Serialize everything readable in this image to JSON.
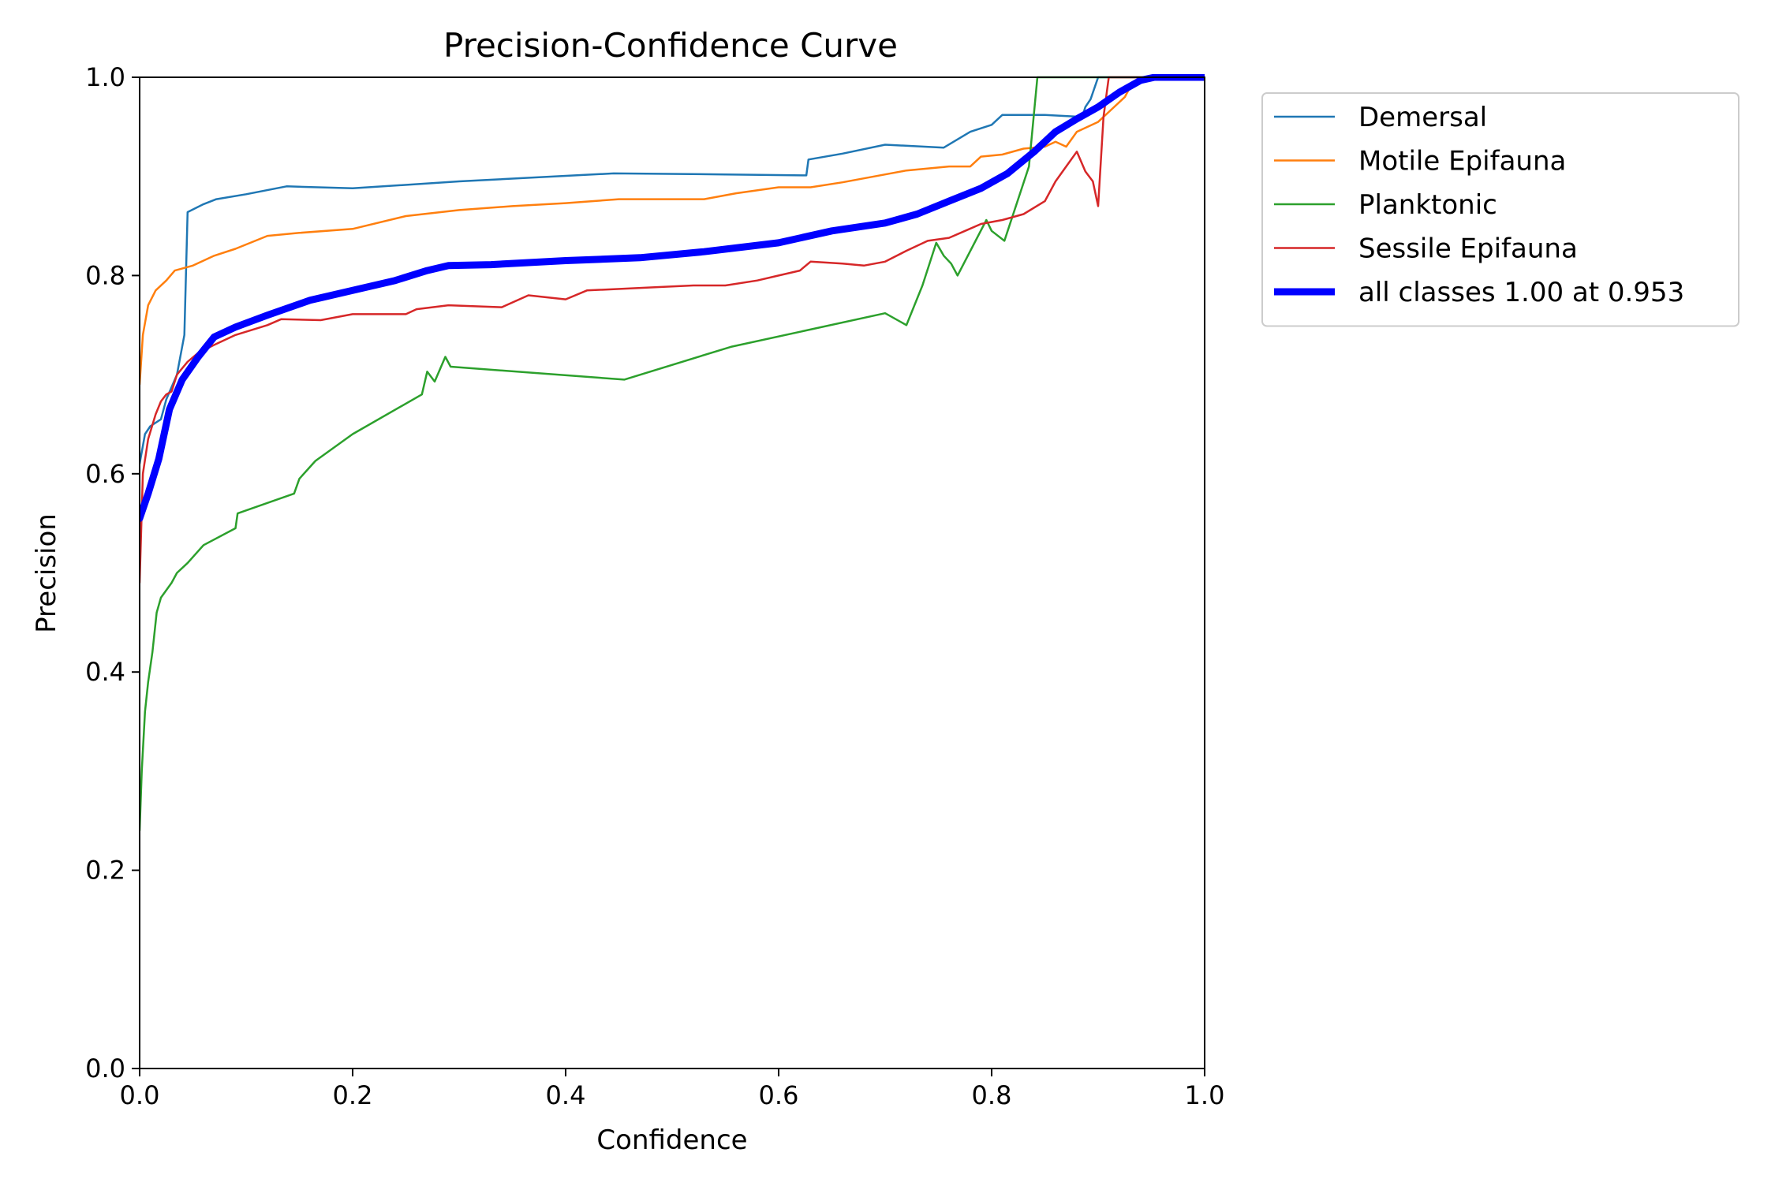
{
  "chart_data": {
    "type": "line",
    "title": "Precision-Confidence Curve",
    "xlabel": "Confidence",
    "ylabel": "Precision",
    "xlim": [
      0,
      1
    ],
    "ylim": [
      0,
      1
    ],
    "xticks": [
      "0.0",
      "0.2",
      "0.4",
      "0.6",
      "0.8",
      "1.0"
    ],
    "yticks": [
      "0.0",
      "0.2",
      "0.4",
      "0.6",
      "0.8",
      "1.0"
    ],
    "grid": false,
    "legend_position": "outside-top-right",
    "series": [
      {
        "name": "Demersal",
        "color": "#1f77b4",
        "width": "thin",
        "points": [
          [
            0.0,
            0.61
          ],
          [
            0.005,
            0.64
          ],
          [
            0.01,
            0.648
          ],
          [
            0.02,
            0.655
          ],
          [
            0.025,
            0.675
          ],
          [
            0.035,
            0.7
          ],
          [
            0.042,
            0.74
          ],
          [
            0.045,
            0.864
          ],
          [
            0.06,
            0.872
          ],
          [
            0.072,
            0.877
          ],
          [
            0.1,
            0.882
          ],
          [
            0.138,
            0.89
          ],
          [
            0.2,
            0.888
          ],
          [
            0.3,
            0.895
          ],
          [
            0.445,
            0.903
          ],
          [
            0.55,
            0.902
          ],
          [
            0.626,
            0.901
          ],
          [
            0.628,
            0.917
          ],
          [
            0.66,
            0.923
          ],
          [
            0.7,
            0.932
          ],
          [
            0.755,
            0.929
          ],
          [
            0.78,
            0.945
          ],
          [
            0.8,
            0.952
          ],
          [
            0.81,
            0.962
          ],
          [
            0.85,
            0.962
          ],
          [
            0.885,
            0.96
          ],
          [
            0.888,
            0.97
          ],
          [
            0.893,
            0.978
          ],
          [
            0.9,
            1.0
          ],
          [
            1.0,
            1.0
          ]
        ]
      },
      {
        "name": "Motile Epifauna",
        "color": "#ff7f0e",
        "width": "thin",
        "points": [
          [
            0.0,
            0.69
          ],
          [
            0.003,
            0.74
          ],
          [
            0.008,
            0.77
          ],
          [
            0.015,
            0.785
          ],
          [
            0.025,
            0.795
          ],
          [
            0.033,
            0.805
          ],
          [
            0.05,
            0.81
          ],
          [
            0.06,
            0.815
          ],
          [
            0.07,
            0.82
          ],
          [
            0.09,
            0.827
          ],
          [
            0.12,
            0.84
          ],
          [
            0.15,
            0.843
          ],
          [
            0.2,
            0.847
          ],
          [
            0.25,
            0.86
          ],
          [
            0.3,
            0.866
          ],
          [
            0.35,
            0.87
          ],
          [
            0.4,
            0.873
          ],
          [
            0.45,
            0.877
          ],
          [
            0.53,
            0.877
          ],
          [
            0.56,
            0.883
          ],
          [
            0.6,
            0.889
          ],
          [
            0.63,
            0.889
          ],
          [
            0.66,
            0.894
          ],
          [
            0.69,
            0.9
          ],
          [
            0.72,
            0.906
          ],
          [
            0.76,
            0.91
          ],
          [
            0.78,
            0.91
          ],
          [
            0.79,
            0.92
          ],
          [
            0.81,
            0.922
          ],
          [
            0.83,
            0.928
          ],
          [
            0.85,
            0.93
          ],
          [
            0.86,
            0.935
          ],
          [
            0.87,
            0.93
          ],
          [
            0.88,
            0.945
          ],
          [
            0.9,
            0.955
          ],
          [
            0.91,
            0.965
          ],
          [
            0.925,
            0.98
          ],
          [
            0.93,
            0.99
          ],
          [
            0.94,
            0.998
          ],
          [
            1.0,
            1.0
          ]
        ]
      },
      {
        "name": "Planktonic",
        "color": "#2ca02c",
        "width": "thin",
        "points": [
          [
            0.0,
            0.24
          ],
          [
            0.002,
            0.3
          ],
          [
            0.005,
            0.36
          ],
          [
            0.008,
            0.39
          ],
          [
            0.012,
            0.42
          ],
          [
            0.016,
            0.46
          ],
          [
            0.02,
            0.475
          ],
          [
            0.03,
            0.49
          ],
          [
            0.035,
            0.5
          ],
          [
            0.045,
            0.51
          ],
          [
            0.06,
            0.528
          ],
          [
            0.09,
            0.545
          ],
          [
            0.092,
            0.56
          ],
          [
            0.145,
            0.58
          ],
          [
            0.15,
            0.595
          ],
          [
            0.165,
            0.613
          ],
          [
            0.2,
            0.64
          ],
          [
            0.265,
            0.68
          ],
          [
            0.27,
            0.703
          ],
          [
            0.277,
            0.693
          ],
          [
            0.287,
            0.718
          ],
          [
            0.292,
            0.708
          ],
          [
            0.455,
            0.695
          ],
          [
            0.555,
            0.728
          ],
          [
            0.7,
            0.762
          ],
          [
            0.72,
            0.75
          ],
          [
            0.735,
            0.79
          ],
          [
            0.748,
            0.833
          ],
          [
            0.755,
            0.82
          ],
          [
            0.762,
            0.812
          ],
          [
            0.768,
            0.8
          ],
          [
            0.795,
            0.856
          ],
          [
            0.8,
            0.845
          ],
          [
            0.812,
            0.835
          ],
          [
            0.835,
            0.91
          ],
          [
            0.843,
            1.0
          ],
          [
            1.0,
            1.0
          ]
        ]
      },
      {
        "name": "Sessile Epifauna",
        "color": "#d62728",
        "width": "thin",
        "points": [
          [
            0.0,
            0.49
          ],
          [
            0.003,
            0.6
          ],
          [
            0.008,
            0.635
          ],
          [
            0.015,
            0.66
          ],
          [
            0.02,
            0.673
          ],
          [
            0.025,
            0.68
          ],
          [
            0.03,
            0.683
          ],
          [
            0.035,
            0.7
          ],
          [
            0.045,
            0.713
          ],
          [
            0.055,
            0.722
          ],
          [
            0.07,
            0.73
          ],
          [
            0.09,
            0.74
          ],
          [
            0.12,
            0.75
          ],
          [
            0.133,
            0.756
          ],
          [
            0.17,
            0.755
          ],
          [
            0.2,
            0.761
          ],
          [
            0.25,
            0.761
          ],
          [
            0.26,
            0.766
          ],
          [
            0.29,
            0.77
          ],
          [
            0.34,
            0.768
          ],
          [
            0.365,
            0.78
          ],
          [
            0.4,
            0.776
          ],
          [
            0.42,
            0.785
          ],
          [
            0.48,
            0.788
          ],
          [
            0.52,
            0.79
          ],
          [
            0.55,
            0.79
          ],
          [
            0.58,
            0.795
          ],
          [
            0.6,
            0.8
          ],
          [
            0.62,
            0.805
          ],
          [
            0.63,
            0.814
          ],
          [
            0.66,
            0.812
          ],
          [
            0.68,
            0.81
          ],
          [
            0.7,
            0.814
          ],
          [
            0.72,
            0.825
          ],
          [
            0.74,
            0.835
          ],
          [
            0.76,
            0.838
          ],
          [
            0.775,
            0.845
          ],
          [
            0.79,
            0.852
          ],
          [
            0.81,
            0.856
          ],
          [
            0.83,
            0.862
          ],
          [
            0.85,
            0.875
          ],
          [
            0.86,
            0.895
          ],
          [
            0.87,
            0.91
          ],
          [
            0.88,
            0.925
          ],
          [
            0.888,
            0.905
          ],
          [
            0.895,
            0.895
          ],
          [
            0.9,
            0.87
          ],
          [
            0.905,
            0.96
          ],
          [
            0.91,
            1.0
          ],
          [
            1.0,
            1.0
          ]
        ]
      },
      {
        "name": "all classes 1.00 at 0.953",
        "color": "#0000ff",
        "width": "thick",
        "points": [
          [
            0.0,
            0.555
          ],
          [
            0.008,
            0.58
          ],
          [
            0.018,
            0.615
          ],
          [
            0.028,
            0.665
          ],
          [
            0.04,
            0.695
          ],
          [
            0.055,
            0.718
          ],
          [
            0.07,
            0.738
          ],
          [
            0.09,
            0.748
          ],
          [
            0.12,
            0.76
          ],
          [
            0.16,
            0.775
          ],
          [
            0.2,
            0.785
          ],
          [
            0.24,
            0.795
          ],
          [
            0.27,
            0.805
          ],
          [
            0.29,
            0.81
          ],
          [
            0.33,
            0.811
          ],
          [
            0.4,
            0.815
          ],
          [
            0.47,
            0.818
          ],
          [
            0.53,
            0.824
          ],
          [
            0.6,
            0.833
          ],
          [
            0.65,
            0.845
          ],
          [
            0.7,
            0.853
          ],
          [
            0.73,
            0.862
          ],
          [
            0.76,
            0.875
          ],
          [
            0.79,
            0.888
          ],
          [
            0.815,
            0.903
          ],
          [
            0.84,
            0.925
          ],
          [
            0.86,
            0.945
          ],
          [
            0.88,
            0.958
          ],
          [
            0.9,
            0.97
          ],
          [
            0.92,
            0.985
          ],
          [
            0.94,
            0.997
          ],
          [
            0.953,
            1.0
          ],
          [
            1.0,
            1.0
          ]
        ]
      }
    ]
  }
}
